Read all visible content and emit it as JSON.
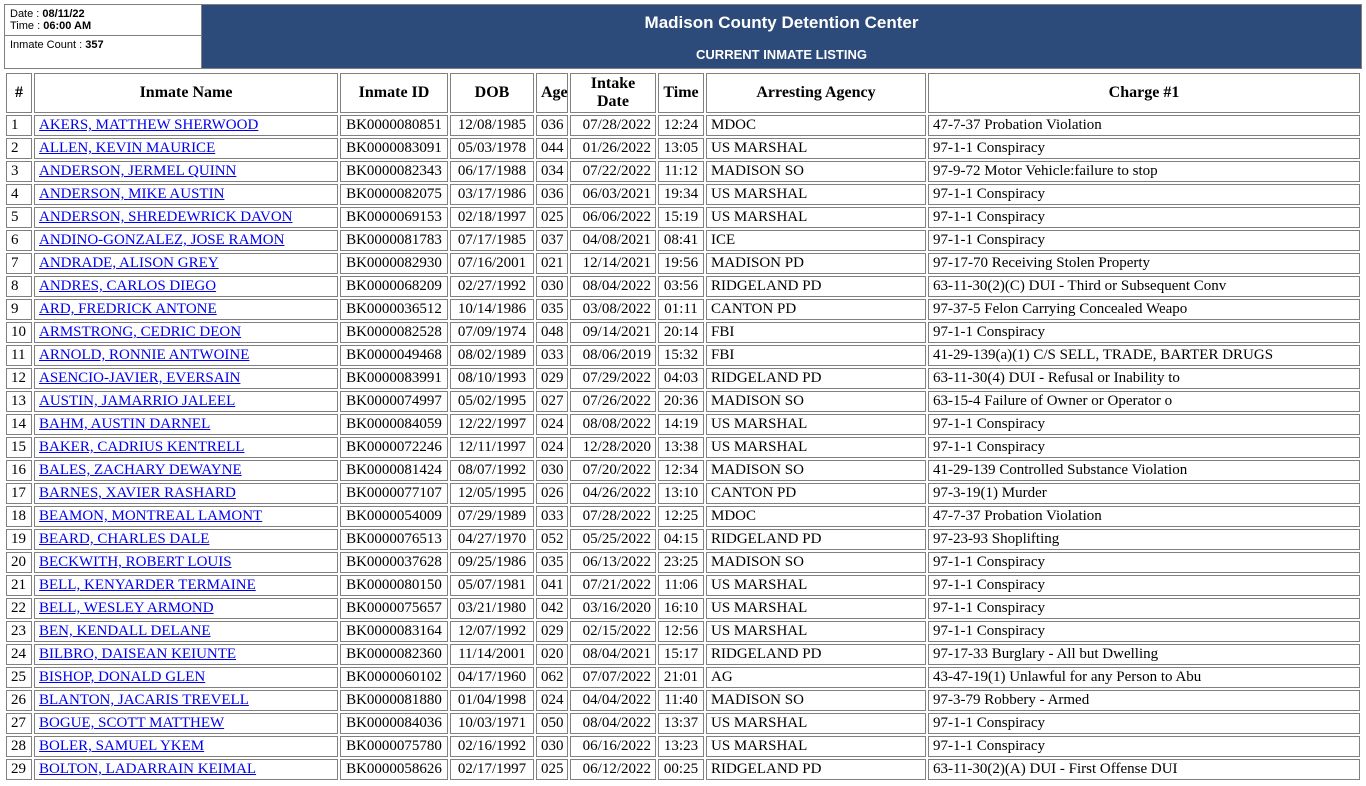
{
  "meta": {
    "date_label": "Date :",
    "date_value": "08/11/22",
    "time_label": "Time :",
    "time_value": "06:00 AM",
    "count_label": "Inmate Count :",
    "count_value": "357"
  },
  "header": {
    "title": "Madison County Detention Center",
    "subtitle": "CURRENT INMATE LISTING"
  },
  "columns": [
    "#",
    "Inmate Name",
    "Inmate ID",
    "DOB",
    "Age",
    "Intake Date",
    "Time",
    "Arresting Agency",
    "Charge #1"
  ],
  "rows": [
    {
      "n": "1",
      "name": "AKERS, MATTHEW SHERWOOD",
      "id": "BK0000080851",
      "dob": "12/08/1985",
      "age": "036",
      "intake": "07/28/2022",
      "time": "12:24",
      "agency": "MDOC",
      "charge": "47-7-37  Probation Violation"
    },
    {
      "n": "2",
      "name": "ALLEN, KEVIN MAURICE",
      "id": "BK0000083091",
      "dob": "05/03/1978",
      "age": "044",
      "intake": "01/26/2022",
      "time": "13:05",
      "agency": "US MARSHAL",
      "charge": "97-1-1  Conspiracy"
    },
    {
      "n": "3",
      "name": "ANDERSON, JERMEL QUINN",
      "id": "BK0000082343",
      "dob": "06/17/1988",
      "age": "034",
      "intake": "07/22/2022",
      "time": "11:12",
      "agency": "MADISON SO",
      "charge": "97-9-72  Motor Vehicle:failure to stop"
    },
    {
      "n": "4",
      "name": "ANDERSON, MIKE AUSTIN",
      "id": "BK0000082075",
      "dob": "03/17/1986",
      "age": "036",
      "intake": "06/03/2021",
      "time": "19:34",
      "agency": "US MARSHAL",
      "charge": "97-1-1  Conspiracy"
    },
    {
      "n": "5",
      "name": "ANDERSON, SHREDEWRICK DAVON",
      "id": "BK0000069153",
      "dob": "02/18/1997",
      "age": "025",
      "intake": "06/06/2022",
      "time": "15:19",
      "agency": "US MARSHAL",
      "charge": "97-1-1  Conspiracy"
    },
    {
      "n": "6",
      "name": "ANDINO-GONZALEZ, JOSE RAMON",
      "id": "BK0000081783",
      "dob": "07/17/1985",
      "age": "037",
      "intake": "04/08/2021",
      "time": "08:41",
      "agency": "ICE",
      "charge": "97-1-1  Conspiracy"
    },
    {
      "n": "7",
      "name": "ANDRADE, ALISON GREY",
      "id": "BK0000082930",
      "dob": "07/16/2001",
      "age": "021",
      "intake": "12/14/2021",
      "time": "19:56",
      "agency": "MADISON PD",
      "charge": "97-17-70  Receiving Stolen Property"
    },
    {
      "n": "8",
      "name": "ANDRES, CARLOS DIEGO",
      "id": "BK0000068209",
      "dob": "02/27/1992",
      "age": "030",
      "intake": "08/04/2022",
      "time": "03:56",
      "agency": "RIDGELAND PD",
      "charge": "63-11-30(2)(C)  DUI - Third or Subsequent Conv"
    },
    {
      "n": "9",
      "name": "ARD, FREDRICK ANTONE",
      "id": "BK0000036512",
      "dob": "10/14/1986",
      "age": "035",
      "intake": "03/08/2022",
      "time": "01:11",
      "agency": "CANTON PD",
      "charge": "97-37-5  Felon Carrying Concealed Weapo"
    },
    {
      "n": "10",
      "name": "ARMSTRONG, CEDRIC DEON",
      "id": "BK0000082528",
      "dob": "07/09/1974",
      "age": "048",
      "intake": "09/14/2021",
      "time": "20:14",
      "agency": "FBI",
      "charge": "97-1-1  Conspiracy"
    },
    {
      "n": "11",
      "name": "ARNOLD, RONNIE ANTWOINE",
      "id": "BK0000049468",
      "dob": "08/02/1989",
      "age": "033",
      "intake": "08/06/2019",
      "time": "15:32",
      "agency": "FBI",
      "charge": " 41-29-139(a)(1)  C/S SELL, TRADE, BARTER DRUGS"
    },
    {
      "n": "12",
      "name": "ASENCIO-JAVIER, EVERSAIN",
      "id": "BK0000083991",
      "dob": "08/10/1993",
      "age": "029",
      "intake": "07/29/2022",
      "time": "04:03",
      "agency": "RIDGELAND PD",
      "charge": "63-11-30(4)  DUI - Refusal or Inability to"
    },
    {
      "n": "13",
      "name": "AUSTIN, JAMARRIO JALEEL",
      "id": "BK0000074997",
      "dob": "05/02/1995",
      "age": "027",
      "intake": "07/26/2022",
      "time": "20:36",
      "agency": "MADISON SO",
      "charge": "63-15-4  Failure of Owner or Operator o"
    },
    {
      "n": "14",
      "name": "BAHM, AUSTIN DARNEL",
      "id": "BK0000084059",
      "dob": "12/22/1997",
      "age": "024",
      "intake": "08/08/2022",
      "time": "14:19",
      "agency": "US MARSHAL",
      "charge": "97-1-1  Conspiracy"
    },
    {
      "n": "15",
      "name": "BAKER, CADRIUS KENTRELL",
      "id": "BK0000072246",
      "dob": "12/11/1997",
      "age": "024",
      "intake": "12/28/2020",
      "time": "13:38",
      "agency": "US MARSHAL",
      "charge": "97-1-1  Conspiracy"
    },
    {
      "n": "16",
      "name": "BALES, ZACHARY DEWAYNE",
      "id": "BK0000081424",
      "dob": "08/07/1992",
      "age": "030",
      "intake": "07/20/2022",
      "time": "12:34",
      "agency": "MADISON SO",
      "charge": "41-29-139  Controlled Substance Violation"
    },
    {
      "n": "17",
      "name": "BARNES, XAVIER RASHARD",
      "id": "BK0000077107",
      "dob": "12/05/1995",
      "age": "026",
      "intake": "04/26/2022",
      "time": "13:10",
      "agency": "CANTON PD",
      "charge": "97-3-19(1)  Murder"
    },
    {
      "n": "18",
      "name": "BEAMON, MONTREAL LAMONT",
      "id": "BK0000054009",
      "dob": "07/29/1989",
      "age": "033",
      "intake": "07/28/2022",
      "time": "12:25",
      "agency": "MDOC",
      "charge": "47-7-37  Probation Violation"
    },
    {
      "n": "19",
      "name": "BEARD, CHARLES DALE",
      "id": "BK0000076513",
      "dob": "04/27/1970",
      "age": "052",
      "intake": "05/25/2022",
      "time": "04:15",
      "agency": "RIDGELAND PD",
      "charge": "97-23-93  Shoplifting"
    },
    {
      "n": "20",
      "name": "BECKWITH, ROBERT LOUIS",
      "id": "BK0000037628",
      "dob": "09/25/1986",
      "age": "035",
      "intake": "06/13/2022",
      "time": "23:25",
      "agency": "MADISON SO",
      "charge": "97-1-1  Conspiracy"
    },
    {
      "n": "21",
      "name": "BELL, KENYARDER TERMAINE",
      "id": "BK0000080150",
      "dob": "05/07/1981",
      "age": "041",
      "intake": "07/21/2022",
      "time": "11:06",
      "agency": "US MARSHAL",
      "charge": "97-1-1  Conspiracy"
    },
    {
      "n": "22",
      "name": "BELL, WESLEY ARMOND",
      "id": "BK0000075657",
      "dob": "03/21/1980",
      "age": "042",
      "intake": "03/16/2020",
      "time": "16:10",
      "agency": "US MARSHAL",
      "charge": "97-1-1  Conspiracy"
    },
    {
      "n": "23",
      "name": "BEN, KENDALL DELANE",
      "id": "BK0000083164",
      "dob": "12/07/1992",
      "age": "029",
      "intake": "02/15/2022",
      "time": "12:56",
      "agency": "US MARSHAL",
      "charge": "97-1-1  Conspiracy"
    },
    {
      "n": "24",
      "name": "BILBRO, DAISEAN KEIUNTE",
      "id": "BK0000082360",
      "dob": "11/14/2001",
      "age": "020",
      "intake": "08/04/2021",
      "time": "15:17",
      "agency": "RIDGELAND PD",
      "charge": "97-17-33  Burglary - All but Dwelling"
    },
    {
      "n": "25",
      "name": "BISHOP, DONALD GLEN",
      "id": "BK0000060102",
      "dob": "04/17/1960",
      "age": "062",
      "intake": "07/07/2022",
      "time": "21:01",
      "agency": "AG",
      "charge": "43-47-19(1)  Unlawful for any Person to Abu"
    },
    {
      "n": "26",
      "name": "BLANTON, JACARIS TREVELL",
      "id": "BK0000081880",
      "dob": "01/04/1998",
      "age": "024",
      "intake": "04/04/2022",
      "time": "11:40",
      "agency": "MADISON SO",
      "charge": "97-3-79  Robbery - Armed"
    },
    {
      "n": "27",
      "name": "BOGUE, SCOTT MATTHEW",
      "id": "BK0000084036",
      "dob": "10/03/1971",
      "age": "050",
      "intake": "08/04/2022",
      "time": "13:37",
      "agency": "US MARSHAL",
      "charge": "97-1-1  Conspiracy"
    },
    {
      "n": "28",
      "name": "BOLER, SAMUEL YKEM",
      "id": "BK0000075780",
      "dob": "02/16/1992",
      "age": "030",
      "intake": "06/16/2022",
      "time": "13:23",
      "agency": "US MARSHAL",
      "charge": "97-1-1  Conspiracy"
    },
    {
      "n": "29",
      "name": "BOLTON, LADARRAIN KEIMAL",
      "id": "BK0000058626",
      "dob": "02/17/1997",
      "age": "025",
      "intake": "06/12/2022",
      "time": "00:25",
      "agency": "RIDGELAND PD",
      "charge": "63-11-30(2)(A)  DUI - First Offense DUI"
    }
  ]
}
